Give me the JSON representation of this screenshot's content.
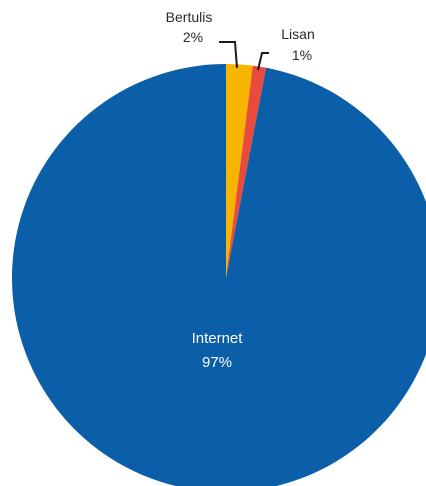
{
  "chart_data": {
    "type": "pie",
    "slices": [
      {
        "name": "Internet",
        "value": 97,
        "label": "97%",
        "color": "#0b5ea8"
      },
      {
        "name": "Bertulis",
        "value": 2,
        "label": "2%",
        "color": "#f7b500"
      },
      {
        "name": "Lisan",
        "value": 1,
        "label": "1%",
        "color": "#e84a3c"
      }
    ],
    "start": "top, clockwise from Bertulis"
  }
}
